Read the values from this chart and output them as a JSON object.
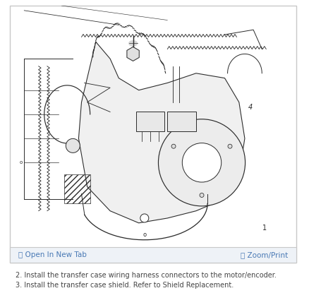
{
  "bg_color": "#ffffff",
  "outer_border_color": "#c8c8c8",
  "diagram_bg": "#ffffff",
  "toolbar_bg": "#eef2f7",
  "toolbar_border": "#c8c8c8",
  "toolbar_left_icon": "⧉",
  "toolbar_left_label": " Open In New Tab",
  "toolbar_right_icon": "🔍",
  "toolbar_right_label": " Zoom/Print",
  "toolbar_text_color": "#4a7ab5",
  "toolbar_fontsize": 7.5,
  "line1": "2. Install the transfer case wiring harness connectors to the motor/encoder.",
  "line2": "3. Install the transfer case shield. Refer to Shield Replacement.",
  "text_color": "#444444",
  "text_fontsize": 7.0,
  "page_bg": "#ffffff",
  "sketch_color": "#2a2a2a",
  "sketch_lw": 0.7
}
